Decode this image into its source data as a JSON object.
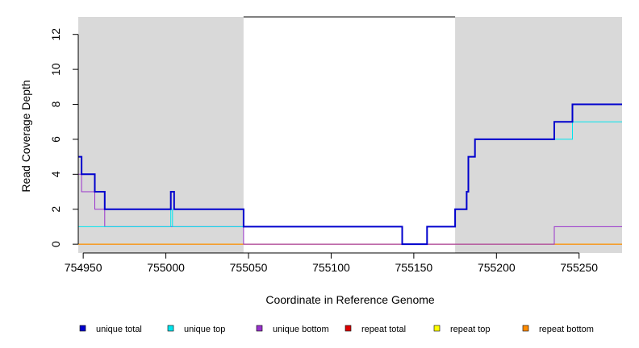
{
  "chart_data": {
    "type": "line",
    "title": "",
    "xlabel": "Coordinate in Reference Genome",
    "ylabel": "Read Coverage Depth",
    "xlim": [
      754947,
      755276
    ],
    "ylim": [
      -0.5,
      13
    ],
    "xticks": [
      754950,
      755000,
      755050,
      755100,
      755150,
      755200,
      755250
    ],
    "yticks": [
      0,
      2,
      4,
      6,
      8,
      10,
      12
    ],
    "shaded_regions": [
      [
        754947,
        755047
      ],
      [
        755175,
        755276
      ]
    ],
    "region_top_line": [
      755047,
      755175
    ],
    "legend_position": "bottom",
    "series": [
      {
        "name": "unique total",
        "color": "#0000cd",
        "width": 2,
        "points": [
          [
            754947,
            5
          ],
          [
            754949,
            5
          ],
          [
            754949,
            4
          ],
          [
            754957,
            4
          ],
          [
            754957,
            3
          ],
          [
            754963,
            3
          ],
          [
            754963,
            2
          ],
          [
            755003,
            2
          ],
          [
            755003,
            3
          ],
          [
            755005,
            3
          ],
          [
            755005,
            2
          ],
          [
            755047,
            2
          ],
          [
            755047,
            1
          ],
          [
            755143,
            1
          ],
          [
            755143,
            0
          ],
          [
            755158,
            0
          ],
          [
            755158,
            1
          ],
          [
            755175,
            1
          ],
          [
            755175,
            2
          ],
          [
            755182,
            2
          ],
          [
            755182,
            3
          ],
          [
            755183,
            3
          ],
          [
            755183,
            5
          ],
          [
            755187,
            5
          ],
          [
            755187,
            6
          ],
          [
            755235,
            6
          ],
          [
            755235,
            7
          ],
          [
            755246,
            7
          ],
          [
            755246,
            8
          ],
          [
            755276,
            8
          ]
        ]
      },
      {
        "name": "unique top",
        "color": "#00e5ee",
        "width": 1,
        "points": [
          [
            754947,
            1
          ],
          [
            754963,
            1
          ],
          [
            754963,
            1
          ],
          [
            755003,
            1
          ],
          [
            755003,
            2
          ],
          [
            755004,
            2
          ],
          [
            755004,
            1
          ],
          [
            755047,
            1
          ],
          [
            755047,
            1
          ],
          [
            755143,
            1
          ],
          [
            755143,
            0
          ],
          [
            755158,
            0
          ],
          [
            755158,
            1
          ],
          [
            755175,
            1
          ],
          [
            755175,
            2
          ],
          [
            755182,
            2
          ],
          [
            755182,
            3
          ],
          [
            755183,
            3
          ],
          [
            755183,
            5
          ],
          [
            755187,
            5
          ],
          [
            755187,
            6
          ],
          [
            755246,
            6
          ],
          [
            755246,
            7
          ],
          [
            755276,
            7
          ]
        ]
      },
      {
        "name": "unique bottom",
        "color": "#9932cc",
        "width": 1,
        "points": [
          [
            754947,
            4
          ],
          [
            754949,
            4
          ],
          [
            754949,
            3
          ],
          [
            754957,
            3
          ],
          [
            754957,
            2
          ],
          [
            754963,
            2
          ],
          [
            754963,
            1
          ],
          [
            755047,
            1
          ],
          [
            755047,
            0
          ],
          [
            755235,
            0
          ],
          [
            755235,
            1
          ],
          [
            755276,
            1
          ]
        ]
      },
      {
        "name": "repeat total",
        "color": "#dd0000",
        "width": 1,
        "points": [
          [
            754947,
            0
          ],
          [
            755276,
            0
          ]
        ]
      },
      {
        "name": "repeat top",
        "color": "#ffff00",
        "width": 1,
        "points": [
          [
            754947,
            0
          ],
          [
            755276,
            0
          ]
        ]
      },
      {
        "name": "repeat bottom",
        "color": "#ff8c00",
        "width": 1,
        "points": [
          [
            754947,
            0
          ],
          [
            755276,
            0
          ]
        ]
      }
    ]
  }
}
